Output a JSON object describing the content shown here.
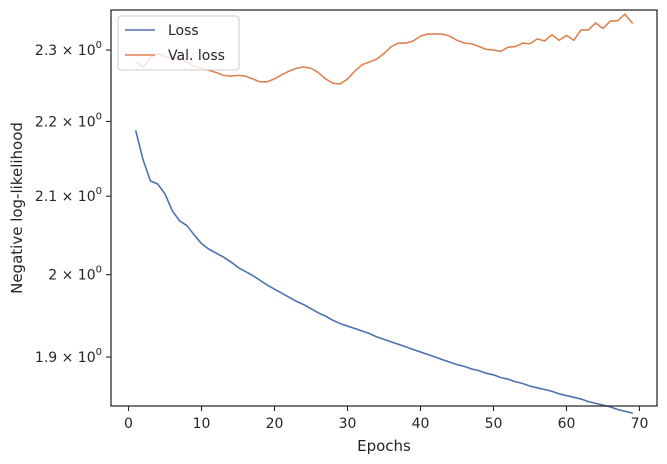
{
  "chart_data": {
    "type": "line",
    "xlabel": "Epochs",
    "ylabel": "Negative log-likelihood",
    "xlim": [
      -2.4,
      72.4
    ],
    "ylim": [
      1.843,
      2.358
    ],
    "yscale": "log",
    "grid": false,
    "legend_position": "top-left",
    "x_ticks": [
      {
        "value": 0,
        "label": "0"
      },
      {
        "value": 10,
        "label": "10"
      },
      {
        "value": 20,
        "label": "20"
      },
      {
        "value": 30,
        "label": "30"
      },
      {
        "value": 40,
        "label": "40"
      },
      {
        "value": 50,
        "label": "50"
      },
      {
        "value": 60,
        "label": "60"
      },
      {
        "value": 70,
        "label": "70"
      }
    ],
    "y_ticks": [
      {
        "value": 1.9,
        "mantissa": "1.9",
        "base": "10",
        "exp": "0"
      },
      {
        "value": 2.0,
        "mantissa": "2",
        "base": "10",
        "exp": "0"
      },
      {
        "value": 2.1,
        "mantissa": "2.1",
        "base": "10",
        "exp": "0"
      },
      {
        "value": 2.2,
        "mantissa": "2.2",
        "base": "10",
        "exp": "0"
      },
      {
        "value": 2.3,
        "mantissa": "2.3",
        "base": "10",
        "exp": "0"
      }
    ],
    "x": [
      1,
      2,
      3,
      4,
      5,
      6,
      7,
      8,
      9,
      10,
      11,
      12,
      13,
      14,
      15,
      16,
      17,
      18,
      19,
      20,
      21,
      22,
      23,
      24,
      25,
      26,
      27,
      28,
      29,
      30,
      31,
      32,
      33,
      34,
      35,
      36,
      37,
      38,
      39,
      40,
      41,
      42,
      43,
      44,
      45,
      46,
      47,
      48,
      49,
      50,
      51,
      52,
      53,
      54,
      55,
      56,
      57,
      58,
      59,
      60,
      61,
      62,
      63,
      64,
      65,
      66,
      67,
      68,
      69
    ],
    "series": [
      {
        "name": "Loss",
        "color": "#4c72b0",
        "values": [
          2.187,
          2.148,
          2.12,
          2.116,
          2.103,
          2.081,
          2.068,
          2.062,
          2.05,
          2.039,
          2.032,
          2.027,
          2.022,
          2.016,
          2.009,
          2.004,
          1.999,
          1.993,
          1.987,
          1.982,
          1.977,
          1.972,
          1.967,
          1.963,
          1.958,
          1.953,
          1.949,
          1.944,
          1.94,
          1.937,
          1.934,
          1.931,
          1.928,
          1.924,
          1.921,
          1.918,
          1.915,
          1.912,
          1.909,
          1.906,
          1.903,
          1.9,
          1.897,
          1.894,
          1.891,
          1.889,
          1.886,
          1.884,
          1.881,
          1.879,
          1.876,
          1.874,
          1.871,
          1.869,
          1.866,
          1.864,
          1.862,
          1.86,
          1.857,
          1.855,
          1.853,
          1.851,
          1.848,
          1.846,
          1.844,
          1.842,
          1.839,
          1.837,
          1.835
        ]
      },
      {
        "name": "Val. loss",
        "color": "#dd8452",
        "values": [
          2.283,
          2.276,
          2.289,
          2.295,
          2.29,
          2.288,
          2.288,
          2.283,
          2.277,
          2.274,
          2.271,
          2.268,
          2.264,
          2.263,
          2.264,
          2.263,
          2.259,
          2.255,
          2.255,
          2.259,
          2.265,
          2.27,
          2.274,
          2.276,
          2.274,
          2.268,
          2.259,
          2.253,
          2.252,
          2.259,
          2.27,
          2.279,
          2.283,
          2.287,
          2.295,
          2.305,
          2.31,
          2.31,
          2.313,
          2.32,
          2.323,
          2.323,
          2.323,
          2.32,
          2.314,
          2.31,
          2.309,
          2.305,
          2.301,
          2.3,
          2.298,
          2.304,
          2.305,
          2.31,
          2.309,
          2.316,
          2.313,
          2.322,
          2.314,
          2.321,
          2.314,
          2.329,
          2.329,
          2.339,
          2.331,
          2.342,
          2.342,
          2.352,
          2.339
        ]
      }
    ]
  }
}
